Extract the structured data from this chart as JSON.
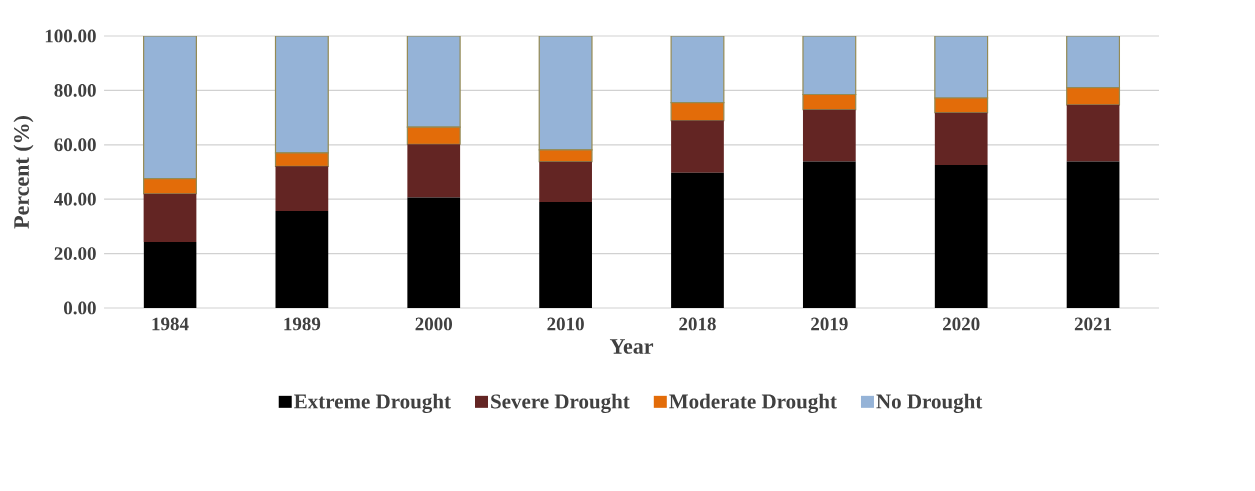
{
  "chart_data": {
    "type": "bar",
    "stacked": true,
    "xlabel": "Year",
    "ylabel": "Percent (%)",
    "categories": [
      "1984",
      "1989",
      "2000",
      "2010",
      "2018",
      "2019",
      "2020",
      "2021"
    ],
    "series": [
      {
        "name": "Extreme Drought",
        "color": "#000000",
        "values": [
          24.3,
          35.7,
          40.6,
          39.0,
          49.7,
          53.9,
          52.6,
          53.9
        ]
      },
      {
        "name": "Severe Drought",
        "color": "#632523",
        "values": [
          17.7,
          16.4,
          19.6,
          14.8,
          19.2,
          19.0,
          19.2,
          20.8
        ]
      },
      {
        "name": "Moderate Drought",
        "color": "#e36c09",
        "values": [
          5.6,
          4.9,
          6.3,
          4.3,
          6.6,
          5.6,
          5.4,
          6.3
        ]
      },
      {
        "name": "No Drought",
        "color": "#95b3d7",
        "values": [
          52.4,
          43.0,
          33.5,
          41.9,
          24.5,
          21.5,
          22.8,
          19.0
        ]
      }
    ],
    "ylim": [
      0,
      100
    ],
    "yticks": [
      {
        "value": 0,
        "label": "0.00"
      },
      {
        "value": 20,
        "label": "20.00"
      },
      {
        "value": 40,
        "label": "40.00"
      },
      {
        "value": 60,
        "label": "60.00"
      },
      {
        "value": 80,
        "label": "80.00"
      },
      {
        "value": 100,
        "label": "100.00"
      }
    ],
    "grid": "y",
    "legend": "bottom"
  }
}
